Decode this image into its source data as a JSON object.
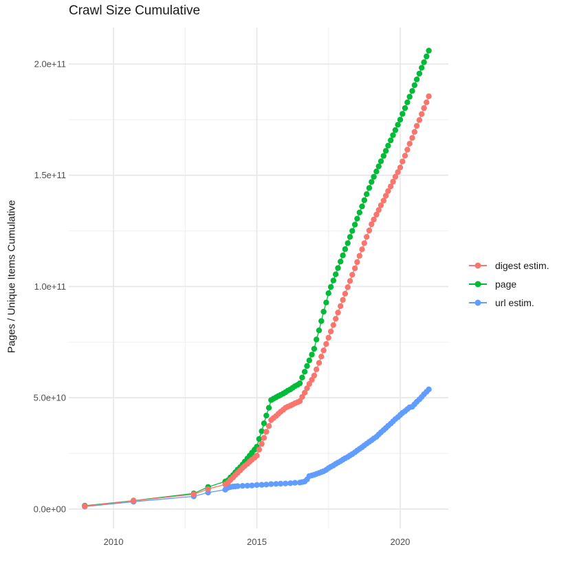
{
  "title": "Crawl Size Cumulative",
  "y_axis_title": "Pages / Unique Items Cumulative",
  "chart_data": {
    "type": "line",
    "marker": "point",
    "title": "Crawl Size Cumulative",
    "xlabel": "",
    "ylabel": "Pages / Unique Items Cumulative",
    "grid": true,
    "legend_position": "right",
    "values_unit": "1e9 pages (value column is in billions)",
    "x_domain": [
      2008.44,
      2021.68
    ],
    "y_domain_e9": [
      -8.7,
      216.4
    ],
    "x_ticks": [
      {
        "v": 2010,
        "label": "2010"
      },
      {
        "v": 2015,
        "label": "2015"
      },
      {
        "v": 2020,
        "label": "2020"
      }
    ],
    "x_minor": [
      2012.5,
      2017.5
    ],
    "y_ticks": [
      {
        "v": 0,
        "label": "0.0e+00"
      },
      {
        "v": 50,
        "label": "5.0e+10"
      },
      {
        "v": 100,
        "label": "1.0e+11"
      },
      {
        "v": 150,
        "label": "1.5e+11"
      },
      {
        "v": 200,
        "label": "2.0e+11"
      }
    ],
    "y_minor_e9": [
      25,
      75,
      125,
      175
    ],
    "series": [
      {
        "name": "digest estim.",
        "color": "#F8766D",
        "points_year_value_e9": [
          [
            2009.0,
            1.3
          ],
          [
            2010.7,
            3.7
          ],
          [
            2012.8,
            6.6
          ],
          [
            2013.3,
            9.0
          ],
          [
            2013.9,
            11.1
          ],
          [
            2014.0,
            12
          ],
          [
            2014.08,
            13.1
          ],
          [
            2014.17,
            14.2
          ],
          [
            2014.25,
            15.3
          ],
          [
            2014.33,
            16.3
          ],
          [
            2014.42,
            17.4
          ],
          [
            2014.5,
            18.5
          ],
          [
            2014.58,
            19.4
          ],
          [
            2014.67,
            20.3
          ],
          [
            2014.75,
            21.3
          ],
          [
            2014.83,
            22.2
          ],
          [
            2014.92,
            23.1
          ],
          [
            2015.0,
            24
          ],
          [
            2015.08,
            26.7
          ],
          [
            2015.17,
            29.3
          ],
          [
            2015.25,
            32
          ],
          [
            2015.33,
            34.7
          ],
          [
            2015.42,
            37.3
          ],
          [
            2015.5,
            40
          ],
          [
            2015.58,
            40.9
          ],
          [
            2015.67,
            41.8
          ],
          [
            2015.75,
            42.8
          ],
          [
            2015.83,
            43.7
          ],
          [
            2015.92,
            44.6
          ],
          [
            2016.0,
            45.5
          ],
          [
            2016.08,
            46
          ],
          [
            2016.17,
            46.5
          ],
          [
            2016.25,
            47
          ],
          [
            2016.33,
            47.5
          ],
          [
            2016.42,
            48
          ],
          [
            2016.5,
            48.5
          ],
          [
            2016.58,
            50.4
          ],
          [
            2016.67,
            52.3
          ],
          [
            2016.75,
            54.3
          ],
          [
            2016.83,
            56.2
          ],
          [
            2016.92,
            58.1
          ],
          [
            2017.0,
            60
          ],
          [
            2017.08,
            62.8
          ],
          [
            2017.17,
            65.7
          ],
          [
            2017.25,
            68.5
          ],
          [
            2017.33,
            71.3
          ],
          [
            2017.42,
            74.2
          ],
          [
            2017.5,
            77
          ],
          [
            2017.58,
            79.8
          ],
          [
            2017.67,
            82.7
          ],
          [
            2017.75,
            85.5
          ],
          [
            2017.83,
            88.3
          ],
          [
            2017.92,
            91.2
          ],
          [
            2018.0,
            94
          ],
          [
            2018.08,
            96.8
          ],
          [
            2018.17,
            99.7
          ],
          [
            2018.25,
            102.5
          ],
          [
            2018.33,
            105.3
          ],
          [
            2018.42,
            108.2
          ],
          [
            2018.5,
            111
          ],
          [
            2018.58,
            113.8
          ],
          [
            2018.67,
            116.7
          ],
          [
            2018.75,
            119.5
          ],
          [
            2018.83,
            122.3
          ],
          [
            2018.92,
            125.2
          ],
          [
            2019.0,
            128
          ],
          [
            2019.08,
            130.1
          ],
          [
            2019.17,
            132.3
          ],
          [
            2019.25,
            134.4
          ],
          [
            2019.33,
            136.5
          ],
          [
            2019.42,
            138.6
          ],
          [
            2019.5,
            140.8
          ],
          [
            2019.58,
            142.9
          ],
          [
            2019.67,
            145
          ],
          [
            2019.75,
            147.1
          ],
          [
            2019.83,
            149.3
          ],
          [
            2019.92,
            151.4
          ],
          [
            2020.0,
            153.5
          ],
          [
            2020.08,
            156.2
          ],
          [
            2020.17,
            158.8
          ],
          [
            2020.25,
            161.5
          ],
          [
            2020.33,
            164.2
          ],
          [
            2020.42,
            166.8
          ],
          [
            2020.5,
            169.5
          ],
          [
            2020.58,
            172.2
          ],
          [
            2020.67,
            174.8
          ],
          [
            2020.75,
            177.5
          ],
          [
            2020.83,
            180.2
          ],
          [
            2020.92,
            182.8
          ],
          [
            2021.0,
            185.5
          ]
        ]
      },
      {
        "name": "page",
        "color": "#00BA38",
        "points_year_value_e9": [
          [
            2009.0,
            1.5
          ],
          [
            2010.7,
            3.8
          ],
          [
            2012.8,
            7.0
          ],
          [
            2013.3,
            9.9
          ],
          [
            2013.9,
            12.4
          ],
          [
            2014.0,
            13
          ],
          [
            2014.08,
            14.2
          ],
          [
            2014.17,
            15.3
          ],
          [
            2014.25,
            16.5
          ],
          [
            2014.33,
            17.7
          ],
          [
            2014.42,
            18.8
          ],
          [
            2014.5,
            20
          ],
          [
            2014.58,
            21.3
          ],
          [
            2014.67,
            22.7
          ],
          [
            2014.75,
            24
          ],
          [
            2014.83,
            25.3
          ],
          [
            2014.92,
            26.7
          ],
          [
            2015.0,
            28
          ],
          [
            2015.08,
            31.5
          ],
          [
            2015.17,
            35
          ],
          [
            2015.25,
            38.5
          ],
          [
            2015.33,
            42
          ],
          [
            2015.42,
            45.5
          ],
          [
            2015.5,
            49
          ],
          [
            2015.58,
            49.6
          ],
          [
            2015.67,
            50.2
          ],
          [
            2015.75,
            50.8
          ],
          [
            2015.83,
            51.3
          ],
          [
            2015.92,
            51.9
          ],
          [
            2016.0,
            52.5
          ],
          [
            2016.08,
            53.2
          ],
          [
            2016.17,
            53.8
          ],
          [
            2016.25,
            54.5
          ],
          [
            2016.33,
            55.2
          ],
          [
            2016.42,
            55.8
          ],
          [
            2016.5,
            56.5
          ],
          [
            2016.58,
            59.1
          ],
          [
            2016.67,
            61.7
          ],
          [
            2016.75,
            64.3
          ],
          [
            2016.83,
            66.8
          ],
          [
            2016.92,
            69.4
          ],
          [
            2017.0,
            72
          ],
          [
            2017.08,
            76.2
          ],
          [
            2017.17,
            80.3
          ],
          [
            2017.25,
            84.5
          ],
          [
            2017.33,
            88.7
          ],
          [
            2017.42,
            92.8
          ],
          [
            2017.5,
            97
          ],
          [
            2017.58,
            99.8
          ],
          [
            2017.67,
            102.7
          ],
          [
            2017.75,
            105.5
          ],
          [
            2017.83,
            108.3
          ],
          [
            2017.92,
            111.2
          ],
          [
            2018.0,
            114
          ],
          [
            2018.08,
            116.8
          ],
          [
            2018.17,
            119.5
          ],
          [
            2018.25,
            122.3
          ],
          [
            2018.33,
            125
          ],
          [
            2018.42,
            127.8
          ],
          [
            2018.5,
            130.5
          ],
          [
            2018.58,
            133.3
          ],
          [
            2018.67,
            136
          ],
          [
            2018.75,
            138.8
          ],
          [
            2018.83,
            141.5
          ],
          [
            2018.92,
            144.3
          ],
          [
            2019.0,
            147
          ],
          [
            2019.08,
            149.3
          ],
          [
            2019.17,
            151.7
          ],
          [
            2019.25,
            154
          ],
          [
            2019.33,
            156.3
          ],
          [
            2019.42,
            158.7
          ],
          [
            2019.5,
            161
          ],
          [
            2019.58,
            163.3
          ],
          [
            2019.67,
            165.7
          ],
          [
            2019.75,
            168
          ],
          [
            2019.83,
            170.3
          ],
          [
            2019.92,
            172.7
          ],
          [
            2020.0,
            175
          ],
          [
            2020.08,
            177.6
          ],
          [
            2020.17,
            180.2
          ],
          [
            2020.25,
            182.8
          ],
          [
            2020.33,
            185.3
          ],
          [
            2020.42,
            187.9
          ],
          [
            2020.5,
            190.5
          ],
          [
            2020.58,
            193.1
          ],
          [
            2020.67,
            195.7
          ],
          [
            2020.75,
            198.3
          ],
          [
            2020.83,
            200.8
          ],
          [
            2020.92,
            203.4
          ],
          [
            2021.0,
            206
          ]
        ]
      },
      {
        "name": "url estim.",
        "color": "#619CFF",
        "points_year_value_e9": [
          [
            2009.0,
            1.1
          ],
          [
            2010.7,
            3.3
          ],
          [
            2012.8,
            5.7
          ],
          [
            2013.3,
            7.4
          ],
          [
            2013.9,
            8.7
          ],
          [
            2014.0,
            9.6
          ],
          [
            2014.08,
            9.9
          ],
          [
            2014.17,
            10.1
          ],
          [
            2014.25,
            10.2
          ],
          [
            2014.33,
            10.3
          ],
          [
            2014.5,
            10.4
          ],
          [
            2014.67,
            10.5
          ],
          [
            2014.83,
            10.6
          ],
          [
            2015.0,
            10.8
          ],
          [
            2015.17,
            10.9
          ],
          [
            2015.33,
            11.0
          ],
          [
            2015.5,
            11.2
          ],
          [
            2015.67,
            11.3
          ],
          [
            2015.83,
            11.4
          ],
          [
            2016.0,
            11.5
          ],
          [
            2016.17,
            11.6
          ],
          [
            2016.33,
            11.8
          ],
          [
            2016.5,
            11.9
          ],
          [
            2016.58,
            12.1
          ],
          [
            2016.67,
            12.4
          ],
          [
            2016.75,
            13.3
          ],
          [
            2016.83,
            14.8
          ],
          [
            2016.92,
            15.1
          ],
          [
            2017.0,
            15.4
          ],
          [
            2017.08,
            15.8
          ],
          [
            2017.17,
            16.2
          ],
          [
            2017.25,
            16.6
          ],
          [
            2017.33,
            17
          ],
          [
            2017.42,
            17.6
          ],
          [
            2017.5,
            18.4
          ],
          [
            2017.58,
            19
          ],
          [
            2017.67,
            19.6
          ],
          [
            2017.75,
            20.3
          ],
          [
            2017.83,
            20.9
          ],
          [
            2017.92,
            21.5
          ],
          [
            2018.0,
            22.2
          ],
          [
            2018.08,
            22.8
          ],
          [
            2018.17,
            23.4
          ],
          [
            2018.25,
            24.1
          ],
          [
            2018.33,
            24.7
          ],
          [
            2018.42,
            25.5
          ],
          [
            2018.5,
            26.3
          ],
          [
            2018.58,
            27
          ],
          [
            2018.67,
            27.8
          ],
          [
            2018.75,
            28.6
          ],
          [
            2018.83,
            29.4
          ],
          [
            2018.92,
            30.2
          ],
          [
            2019.0,
            30.9
          ],
          [
            2019.08,
            31.7
          ],
          [
            2019.17,
            32.5
          ],
          [
            2019.25,
            33.5
          ],
          [
            2019.33,
            34.5
          ],
          [
            2019.42,
            35.5
          ],
          [
            2019.5,
            36.4
          ],
          [
            2019.58,
            37.4
          ],
          [
            2019.67,
            38.4
          ],
          [
            2019.75,
            39.4
          ],
          [
            2019.83,
            40.4
          ],
          [
            2019.92,
            41.3
          ],
          [
            2020.0,
            42.3
          ],
          [
            2020.08,
            43.2
          ],
          [
            2020.17,
            44
          ],
          [
            2020.25,
            44.9
          ],
          [
            2020.33,
            45.7
          ],
          [
            2020.42,
            46
          ],
          [
            2020.5,
            47.1
          ],
          [
            2020.58,
            48.2
          ],
          [
            2020.67,
            49.3
          ],
          [
            2020.75,
            50.4
          ],
          [
            2020.83,
            51.6
          ],
          [
            2020.92,
            52.7
          ],
          [
            2021.0,
            53.8
          ]
        ]
      }
    ]
  }
}
